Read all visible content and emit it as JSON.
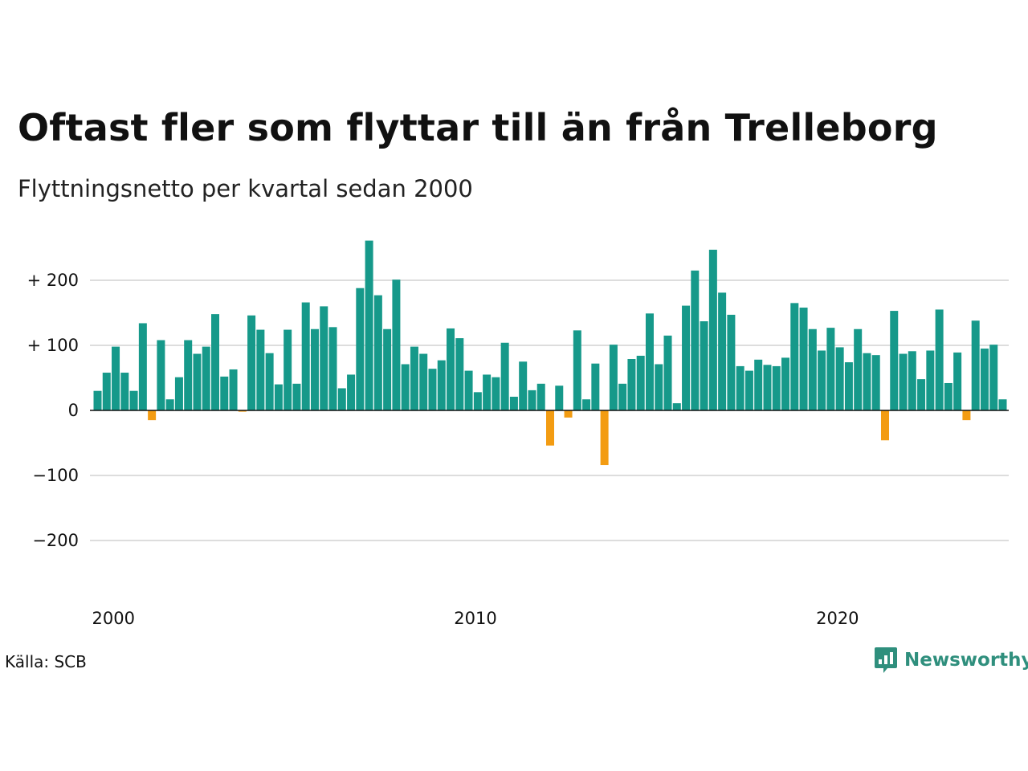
{
  "title": "Oftast fler som flyttar till än från Trelleborg",
  "subtitle": "Flyttningsnetto per kvartal sedan 2000",
  "source": "Källa: SCB",
  "brand": {
    "name": "Newsworthy",
    "icon": "newsworthy-logo-icon"
  },
  "colors": {
    "positive": "#16998a",
    "negative": "#f39c12",
    "grid": "#dddddd",
    "axis": "#111111"
  },
  "chart_data": {
    "type": "bar",
    "title": "Oftast fler som flyttar till än från Trelleborg",
    "subtitle": "Flyttningsnetto per kvartal sedan 2000",
    "xlabel": "",
    "ylabel": "",
    "ylim": [
      -200,
      260
    ],
    "yticks": [
      -200,
      -100,
      0,
      100,
      200
    ],
    "ytick_labels": [
      "−200",
      "−100",
      "0",
      "+ 100",
      "+ 200"
    ],
    "xtick_labels": [
      "2000",
      "2010",
      "2020"
    ],
    "x_start_year": 2000,
    "grid": true,
    "legend": "none",
    "categories": [
      "2000 K1",
      "2000 K2",
      "2000 K3",
      "2000 K4",
      "2001 K1",
      "2001 K2",
      "2001 K3",
      "2001 K4",
      "2002 K1",
      "2002 K2",
      "2002 K3",
      "2002 K4",
      "2003 K1",
      "2003 K2",
      "2003 K3",
      "2003 K4",
      "2004 K1",
      "2004 K2",
      "2004 K3",
      "2004 K4",
      "2005 K1",
      "2005 K2",
      "2005 K3",
      "2005 K4",
      "2006 K1",
      "2006 K2",
      "2006 K3",
      "2006 K4",
      "2007 K1",
      "2007 K2",
      "2007 K3",
      "2007 K4",
      "2008 K1",
      "2008 K2",
      "2008 K3",
      "2008 K4",
      "2009 K1",
      "2009 K2",
      "2009 K3",
      "2009 K4",
      "2010 K1",
      "2010 K2",
      "2010 K3",
      "2010 K4",
      "2011 K1",
      "2011 K2",
      "2011 K3",
      "2011 K4",
      "2012 K1",
      "2012 K2",
      "2012 K3",
      "2012 K4",
      "2013 K1",
      "2013 K2",
      "2013 K3",
      "2013 K4",
      "2014 K1",
      "2014 K2",
      "2014 K3",
      "2014 K4",
      "2015 K1",
      "2015 K2",
      "2015 K3",
      "2015 K4",
      "2016 K1",
      "2016 K2",
      "2016 K3",
      "2016 K4",
      "2017 K1",
      "2017 K2",
      "2017 K3",
      "2017 K4",
      "2018 K1",
      "2018 K2",
      "2018 K3",
      "2018 K4",
      "2019 K1",
      "2019 K2",
      "2019 K3",
      "2019 K4",
      "2020 K1",
      "2020 K2",
      "2020 K3",
      "2020 K4",
      "2021 K1",
      "2021 K2",
      "2021 K3",
      "2021 K4",
      "2022 K1",
      "2022 K2",
      "2022 K3",
      "2022 K4",
      "2023 K1",
      "2023 K2",
      "2023 K3",
      "2023 K4",
      "2024 K1",
      "2024 K2",
      "2024 K3",
      "2024 K4",
      "2025 K1"
    ],
    "values": [
      30,
      58,
      98,
      58,
      30,
      134,
      -15,
      108,
      17,
      51,
      108,
      87,
      98,
      148,
      52,
      63,
      -2,
      146,
      124,
      88,
      40,
      124,
      41,
      166,
      125,
      160,
      128,
      34,
      55,
      188,
      261,
      177,
      125,
      201,
      71,
      98,
      87,
      64,
      77,
      126,
      111,
      61,
      28,
      55,
      51,
      104,
      21,
      75,
      31,
      41,
      -54,
      38,
      -11,
      123,
      17,
      72,
      -84,
      101,
      41,
      79,
      84,
      149,
      71,
      115,
      11,
      161,
      215,
      137,
      247,
      181,
      147,
      68,
      61,
      78,
      70,
      68,
      81,
      165,
      158,
      125,
      92,
      127,
      97,
      74,
      125,
      88,
      85,
      -46,
      153,
      87,
      91,
      48,
      92,
      155,
      42,
      89,
      -15,
      138,
      95,
      101,
      17
    ]
  }
}
